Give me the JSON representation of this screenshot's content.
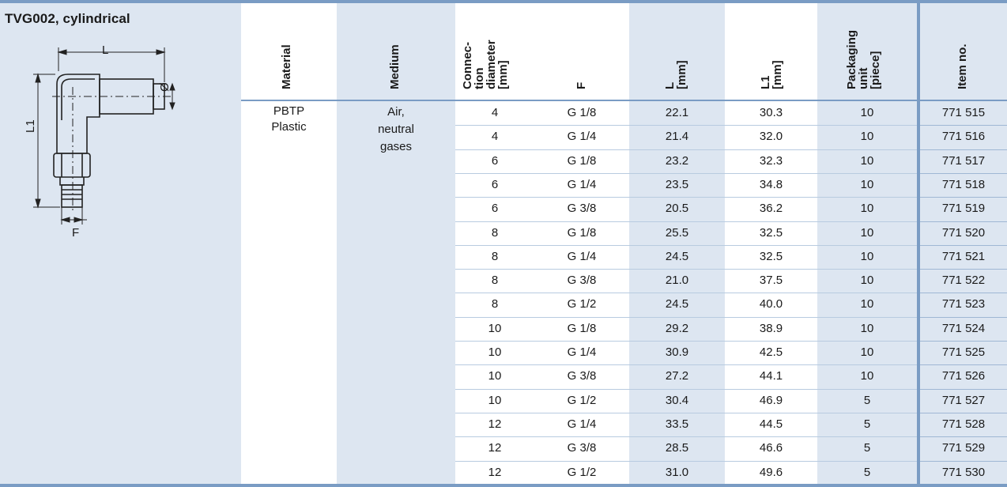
{
  "title": "TVG002, cylindrical",
  "drawing_labels": {
    "L": "L",
    "L1": "L1",
    "F": "F",
    "dia": "Ø"
  },
  "columns": {
    "material": "Material",
    "medium": "Medium",
    "connection": [
      "Connec-",
      "tion",
      "diameter",
      "[mm]"
    ],
    "f": "F",
    "l": [
      "L",
      "[mm]"
    ],
    "l1": [
      "L1",
      "[mm]"
    ],
    "packaging": [
      "Packaging",
      "unit",
      "[piece]"
    ],
    "item": "Item no."
  },
  "material": [
    "PBTP",
    "Plastic"
  ],
  "medium": [
    "Air,",
    "neutral",
    "gases"
  ],
  "rows": [
    {
      "d": "4",
      "f": "G 1/8",
      "l": "22.1",
      "l1": "30.3",
      "pu": "10",
      "item": "771 515"
    },
    {
      "d": "4",
      "f": "G 1/4",
      "l": "21.4",
      "l1": "32.0",
      "pu": "10",
      "item": "771 516"
    },
    {
      "d": "6",
      "f": "G 1/8",
      "l": "23.2",
      "l1": "32.3",
      "pu": "10",
      "item": "771 517"
    },
    {
      "d": "6",
      "f": "G 1/4",
      "l": "23.5",
      "l1": "34.8",
      "pu": "10",
      "item": "771 518"
    },
    {
      "d": "6",
      "f": "G 3/8",
      "l": "20.5",
      "l1": "36.2",
      "pu": "10",
      "item": "771 519"
    },
    {
      "d": "8",
      "f": "G 1/8",
      "l": "25.5",
      "l1": "32.5",
      "pu": "10",
      "item": "771 520"
    },
    {
      "d": "8",
      "f": "G 1/4",
      "l": "24.5",
      "l1": "32.5",
      "pu": "10",
      "item": "771 521"
    },
    {
      "d": "8",
      "f": "G 3/8",
      "l": "21.0",
      "l1": "37.5",
      "pu": "10",
      "item": "771 522"
    },
    {
      "d": "8",
      "f": "G 1/2",
      "l": "24.5",
      "l1": "40.0",
      "pu": "10",
      "item": "771 523"
    },
    {
      "d": "10",
      "f": "G 1/8",
      "l": "29.2",
      "l1": "38.9",
      "pu": "10",
      "item": "771 524"
    },
    {
      "d": "10",
      "f": "G 1/4",
      "l": "30.9",
      "l1": "42.5",
      "pu": "10",
      "item": "771 525"
    },
    {
      "d": "10",
      "f": "G 3/8",
      "l": "27.2",
      "l1": "44.1",
      "pu": "10",
      "item": "771 526"
    },
    {
      "d": "10",
      "f": "G 1/2",
      "l": "30.4",
      "l1": "46.9",
      "pu": "5",
      "item": "771 527"
    },
    {
      "d": "12",
      "f": "G 1/4",
      "l": "33.5",
      "l1": "44.5",
      "pu": "5",
      "item": "771 528"
    },
    {
      "d": "12",
      "f": "G 3/8",
      "l": "28.5",
      "l1": "46.6",
      "pu": "5",
      "item": "771 529"
    },
    {
      "d": "12",
      "f": "G 1/2",
      "l": "31.0",
      "l1": "49.6",
      "pu": "5",
      "item": "771 530"
    }
  ],
  "colors": {
    "accent": "#7a9cc4",
    "panel": "#dde6f1",
    "rule": "#b8cbe0"
  }
}
